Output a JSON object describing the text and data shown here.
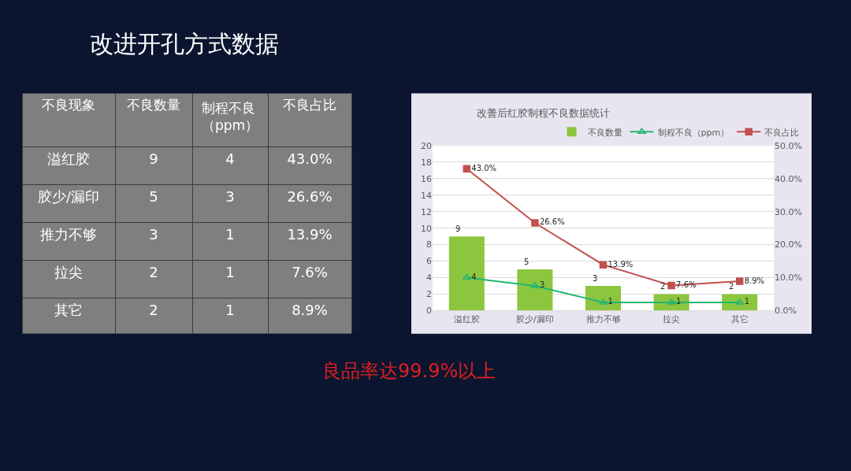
{
  "chart_data": [
    {
      "type": "other",
      "title": "改进开孔方式数据",
      "xlabel": "不良现象",
      "categories": [
        "溢红胶",
        "胶少/漏印",
        "推力不够",
        "拉尖",
        "其它"
      ],
      "series": [
        {
          "name": "不良数量",
          "values": [
            9,
            5,
            3,
            2,
            2
          ],
          "value_labels": [
            "9",
            "5",
            "3",
            "2",
            "2"
          ]
        },
        {
          "name": "制程不良（ppm）",
          "values": [
            4,
            3,
            1,
            1,
            1
          ],
          "value_labels": [
            "4",
            "3",
            "1",
            "1",
            "1"
          ]
        },
        {
          "name": "不良占比",
          "values": [
            43.0,
            26.6,
            13.9,
            7.6,
            8.9
          ],
          "value_labels": [
            "43.0%",
            "26.6%",
            "13.9%",
            "7.6%",
            "8.9%"
          ]
        }
      ],
      "annotations": [
        "良品率达99.9%以上"
      ]
    },
    {
      "type": "bar",
      "title": "改善后红胶制程不良数据统计",
      "categories": [
        "溢红胶",
        "胶少/漏印",
        "推力不够",
        "拉尖",
        "其它"
      ],
      "series": [
        {
          "name": "不良数量",
          "type": "bar",
          "color": "#8cc63f",
          "values": [
            9,
            5,
            3,
            2,
            2
          ],
          "value_labels": [
            "9",
            "5",
            "3",
            "2",
            "2"
          ]
        },
        {
          "name": "制程不良（ppm）",
          "type": "line",
          "marker": "triangle",
          "color": "#22b573",
          "values": [
            4,
            3,
            1,
            1,
            1
          ],
          "value_labels": [
            "4",
            "3",
            "1",
            "1",
            "1"
          ]
        },
        {
          "name": "不良占比",
          "type": "line",
          "marker": "square",
          "axis": "y2",
          "color": "#c0504d",
          "values": [
            43.0,
            26.6,
            13.9,
            7.6,
            8.9
          ],
          "value_labels": [
            "43.0%",
            "26.6%",
            "13.9%",
            "7.6%",
            "8.9%"
          ]
        }
      ],
      "ylim": [
        0,
        20
      ],
      "yticks": [
        0,
        2,
        4,
        6,
        8,
        10,
        12,
        14,
        16,
        18,
        20
      ],
      "y2lim": [
        0,
        50
      ],
      "y2ticks": [
        {
          "value": 0,
          "label": "0.0%"
        },
        {
          "value": 10,
          "label": "10.0%"
        },
        {
          "value": 20,
          "label": "20.0%"
        },
        {
          "value": 30,
          "label": "30.0%"
        },
        {
          "value": 40,
          "label": "40.0%"
        },
        {
          "value": 50,
          "label": "50.0%"
        }
      ],
      "grid": "y",
      "legend": "top right"
    }
  ]
}
